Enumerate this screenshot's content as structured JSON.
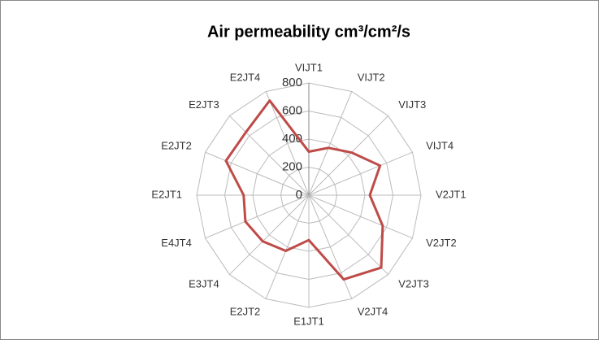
{
  "chart_data": {
    "type": "radar",
    "title": "Air permeability cm³/cm²/s",
    "categories": [
      "VIJT1",
      "VIJT2",
      "VIJT3",
      "VIJT4",
      "V2JT1",
      "V2JT2",
      "V2JT3",
      "V2JT4",
      "E1JT1",
      "E2JT2",
      "E3JT4",
      "E4JT4",
      "E2JT1",
      "E2JT2",
      "E2JT3",
      "E2JT4"
    ],
    "series": [
      {
        "name": "Air permeability",
        "color": "#be4b48",
        "values": [
          310,
          365,
          430,
          550,
          435,
          570,
          730,
          650,
          320,
          430,
          465,
          490,
          465,
          640,
          635,
          730
        ]
      }
    ],
    "ylim": [
      0,
      800
    ],
    "yticks": [
      0,
      200,
      400,
      600,
      800
    ],
    "grid": true
  }
}
